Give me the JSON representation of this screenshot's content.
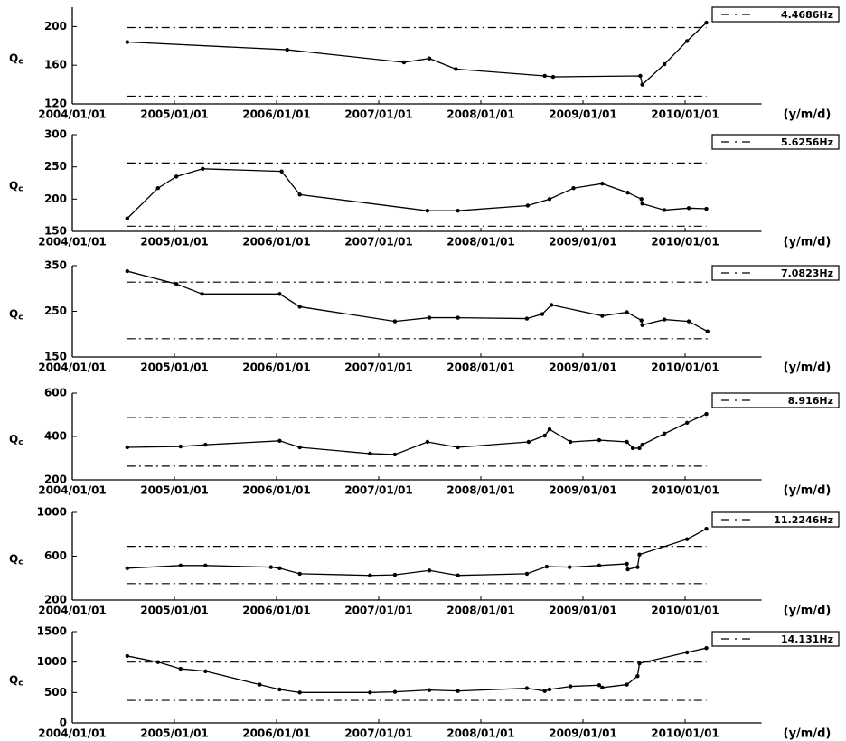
{
  "chart_data": [
    {
      "type": "line",
      "ylabel": {
        "base": "Q",
        "sub": "c"
      },
      "xlabel": "(y/m/d)",
      "color": "#000000",
      "xlim": [
        "2004/01/01",
        "2010/10/01"
      ],
      "xticks": [
        "2004/01/01",
        "2005/01/01",
        "2006/01/01",
        "2007/01/01",
        "2008/01/01",
        "2009/01/01",
        "2010/01/01"
      ],
      "ylim": [
        120,
        220
      ],
      "yticks": [
        120,
        160,
        200
      ],
      "reference_lines": {
        "name": "4.4686Hz",
        "values": [
          128,
          199
        ]
      },
      "x": [
        "2004/07/16",
        "2006/02/08",
        "2007/04/01",
        "2007/07/01",
        "2007/10/04",
        "2008/08/17",
        "2008/09/16",
        "2009/07/25",
        "2009/08/01",
        "2009/10/19",
        "2010/01/08",
        "2010/03/18"
      ],
      "values": [
        184,
        176,
        163,
        167,
        156,
        149,
        148,
        149,
        140,
        161,
        185,
        204
      ]
    },
    {
      "type": "line",
      "ylabel": {
        "base": "Q",
        "sub": "c"
      },
      "xlabel": "(y/m/d)",
      "color": "#000000",
      "xlim": [
        "2004/01/01",
        "2010/10/01"
      ],
      "xticks": [
        "2004/01/01",
        "2005/01/01",
        "2006/01/01",
        "2007/01/01",
        "2008/01/01",
        "2009/01/01",
        "2010/01/01"
      ],
      "ylim": [
        150,
        300
      ],
      "yticks": [
        150,
        200,
        250,
        300
      ],
      "reference_lines": {
        "name": "5.6256Hz",
        "values": [
          158,
          256
        ]
      },
      "x": [
        "2004/07/16",
        "2004/11/03",
        "2005/01/08",
        "2005/04/12",
        "2006/01/19",
        "2006/03/25",
        "2007/06/24",
        "2007/10/11",
        "2008/06/17",
        "2008/09/03",
        "2008/11/28",
        "2009/03/11",
        "2009/06/10",
        "2009/07/29",
        "2009/08/01",
        "2009/10/19",
        "2010/01/14",
        "2010/03/18"
      ],
      "values": [
        170,
        217,
        235,
        247,
        243,
        207,
        182,
        182,
        190,
        200,
        217,
        224,
        210,
        200,
        193,
        183,
        186,
        185
      ]
    },
    {
      "type": "line",
      "ylabel": {
        "base": "Q",
        "sub": "c"
      },
      "xlabel": "(y/m/d)",
      "color": "#000000",
      "xlim": [
        "2004/01/01",
        "2010/10/01"
      ],
      "xticks": [
        "2004/01/01",
        "2005/01/01",
        "2006/01/01",
        "2007/01/01",
        "2008/01/01",
        "2009/01/01",
        "2010/01/01"
      ],
      "ylim": [
        150,
        350
      ],
      "yticks": [
        150,
        250,
        350
      ],
      "reference_lines": {
        "name": "7.0823Hz",
        "values": [
          190,
          314
        ]
      },
      "x": [
        "2004/07/16",
        "2005/01/08",
        "2005/04/10",
        "2006/01/12",
        "2006/03/25",
        "2007/02/28",
        "2007/07/01",
        "2007/10/11",
        "2008/06/14",
        "2008/08/08",
        "2008/09/10",
        "2009/03/11",
        "2009/06/07",
        "2009/07/29",
        "2009/08/01",
        "2009/10/19",
        "2010/01/14",
        "2010/03/22"
      ],
      "values": [
        338,
        310,
        288,
        288,
        260,
        228,
        236,
        236,
        234,
        244,
        264,
        240,
        248,
        230,
        220,
        232,
        228,
        206
      ]
    },
    {
      "type": "line",
      "ylabel": {
        "base": "Q",
        "sub": "c"
      },
      "xlabel": "(y/m/d)",
      "color": "#000000",
      "xlim": [
        "2004/01/01",
        "2010/10/01"
      ],
      "xticks": [
        "2004/01/01",
        "2005/01/01",
        "2006/01/01",
        "2007/01/01",
        "2008/01/01",
        "2009/01/01",
        "2010/01/01"
      ],
      "ylim": [
        200,
        600
      ],
      "yticks": [
        200,
        400,
        600
      ],
      "reference_lines": {
        "name": "8.916Hz",
        "values": [
          263,
          488
        ]
      },
      "x": [
        "2004/07/16",
        "2005/01/23",
        "2005/04/22",
        "2006/01/12",
        "2006/03/25",
        "2006/12/01",
        "2007/02/28",
        "2007/06/24",
        "2007/10/11",
        "2008/06/20",
        "2008/08/17",
        "2008/09/03",
        "2008/11/17",
        "2009/02/28",
        "2009/06/07",
        "2009/06/28",
        "2009/07/22",
        "2009/08/01",
        "2009/10/19",
        "2010/01/08",
        "2010/03/18"
      ],
      "values": [
        350,
        354,
        362,
        380,
        350,
        321,
        317,
        375,
        350,
        375,
        404,
        433,
        375,
        383,
        375,
        346,
        346,
        362,
        413,
        463,
        504
      ]
    },
    {
      "type": "line",
      "ylabel": {
        "base": "Q",
        "sub": "c"
      },
      "xlabel": "(y/m/d)",
      "color": "#000000",
      "xlim": [
        "2004/01/01",
        "2010/10/01"
      ],
      "xticks": [
        "2004/01/01",
        "2005/01/01",
        "2006/01/01",
        "2007/01/01",
        "2008/01/01",
        "2009/01/01",
        "2010/01/01"
      ],
      "ylim": [
        200,
        1000
      ],
      "yticks": [
        200,
        600,
        1000
      ],
      "reference_lines": {
        "name": "11.2246Hz",
        "values": [
          350,
          690
        ]
      },
      "x": [
        "2004/07/16",
        "2005/01/23",
        "2005/04/22",
        "2005/12/12",
        "2006/01/12",
        "2006/03/25",
        "2006/12/01",
        "2007/02/28",
        "2007/07/01",
        "2007/10/11",
        "2008/06/14",
        "2008/08/24",
        "2008/11/14",
        "2009/02/28",
        "2009/06/07",
        "2009/06/10",
        "2009/07/15",
        "2009/07/22",
        "2010/01/08",
        "2010/03/18"
      ],
      "values": [
        490,
        515,
        515,
        500,
        490,
        440,
        425,
        430,
        470,
        425,
        440,
        505,
        500,
        515,
        530,
        480,
        500,
        615,
        755,
        850
      ]
    },
    {
      "type": "line",
      "ylabel": {
        "base": "Q",
        "sub": "c"
      },
      "xlabel": "(y/m/d)",
      "color": "#000000",
      "xlim": [
        "2004/01/01",
        "2010/10/01"
      ],
      "xticks": [
        "2004/01/01",
        "2005/01/01",
        "2006/01/01",
        "2007/01/01",
        "2008/01/01",
        "2009/01/01",
        "2010/01/01"
      ],
      "ylim": [
        0,
        1500
      ],
      "yticks": [
        0,
        500,
        1000,
        1500
      ],
      "reference_lines": {
        "name": "14.131Hz",
        "values": [
          370,
          1000
        ]
      },
      "x": [
        "2004/07/16",
        "2004/11/03",
        "2005/01/23",
        "2005/04/22",
        "2005/11/02",
        "2006/01/12",
        "2006/03/25",
        "2006/12/01",
        "2007/02/28",
        "2007/07/01",
        "2007/10/11",
        "2008/06/14",
        "2008/08/17",
        "2008/09/03",
        "2008/11/17",
        "2009/02/28",
        "2009/03/11",
        "2009/06/07",
        "2009/07/15",
        "2009/07/22",
        "2010/01/08",
        "2010/03/18"
      ],
      "values": [
        1100,
        1000,
        890,
        850,
        630,
        550,
        500,
        500,
        510,
        540,
        525,
        570,
        525,
        550,
        600,
        620,
        580,
        630,
        770,
        980,
        1160,
        1230
      ]
    }
  ]
}
